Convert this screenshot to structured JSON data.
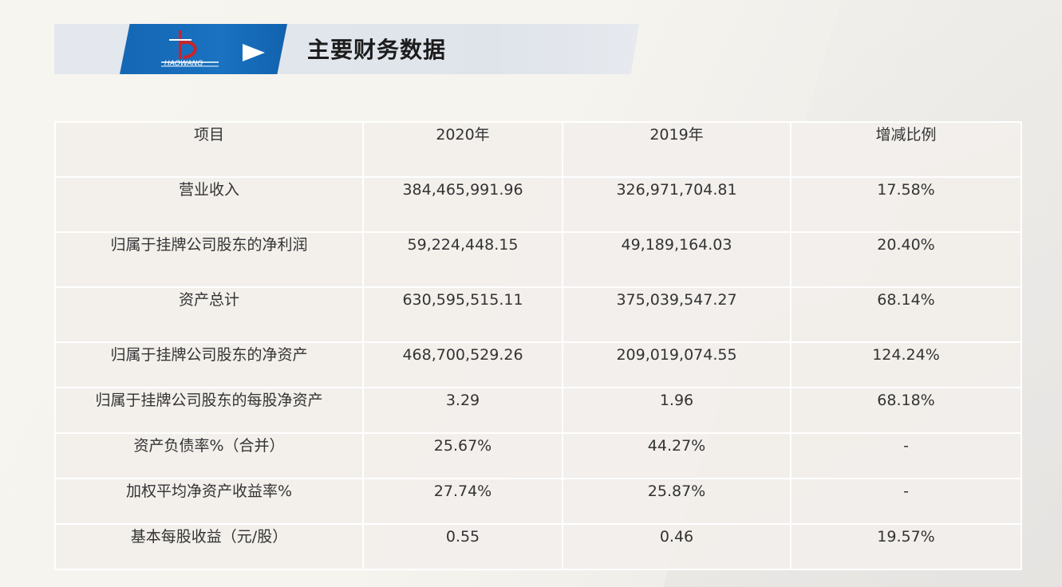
{
  "header": {
    "title": "主要财务数据",
    "logo_text": "HAOWANG"
  },
  "table": {
    "columns": [
      "项目",
      "2020年",
      "2019年",
      "增减比例"
    ],
    "rows": [
      [
        "营业收入",
        "384,465,991.96",
        "326,971,704.81",
        "17.58%"
      ],
      [
        "归属于挂牌公司股东的净利润",
        "59,224,448.15",
        "49,189,164.03",
        "20.40%"
      ],
      [
        "资产总计",
        "630,595,515.11",
        "375,039,547.27",
        "68.14%"
      ],
      [
        "归属于挂牌公司股东的净资产",
        "468,700,529.26",
        "209,019,074.55",
        "124.24%"
      ],
      [
        "归属于挂牌公司股东的每股净资产",
        "3.29",
        "1.96",
        "68.18%"
      ],
      [
        "资产负债率%（合并）",
        "25.67%",
        "44.27%",
        "-"
      ],
      [
        "加权平均净资产收益率%",
        "27.74%",
        "25.87%",
        "-"
      ],
      [
        "基本每股收益（元/股）",
        "0.55",
        "0.46",
        "19.57%"
      ]
    ]
  },
  "colors": {
    "accent_blue": "#1467b4",
    "header_band": "#e1e6ec",
    "table_bg": "#f2efeb",
    "text": "#333333"
  },
  "icons": [
    "company-logo",
    "play-arrow-icon"
  ]
}
